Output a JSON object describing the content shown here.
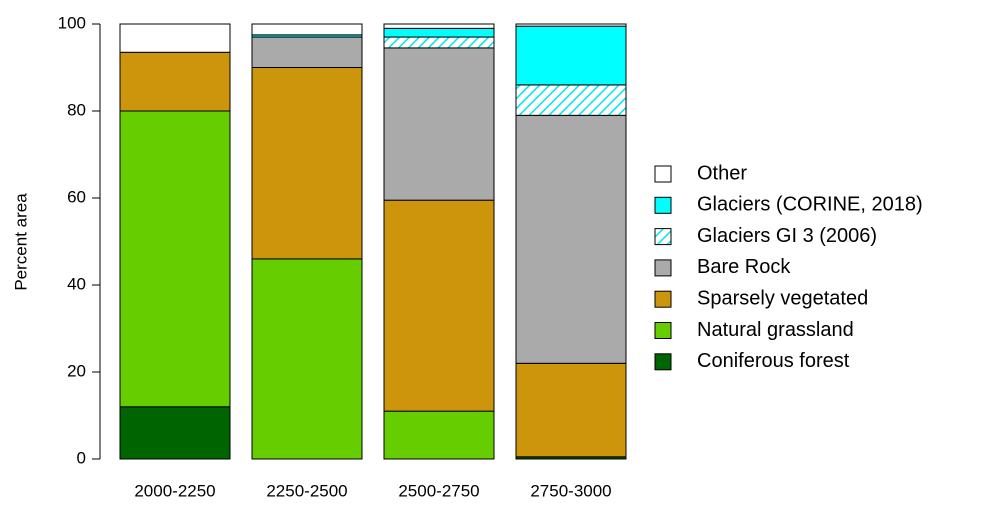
{
  "chart_data": {
    "type": "stacked_bar",
    "categories": [
      "2000-2250",
      "2250-2500",
      "2500-2750",
      "2750-3000"
    ],
    "y_label": "Percent area",
    "ylim": [
      0,
      100
    ],
    "yticks": [
      0,
      20,
      40,
      60,
      80,
      100
    ],
    "series": [
      {
        "name": "Coniferous forest",
        "color": "#006400",
        "values": [
          12,
          0,
          0,
          0.5
        ]
      },
      {
        "name": "Natural grassland",
        "color": "#66cd00",
        "values": [
          68,
          46,
          11,
          0
        ]
      },
      {
        "name": "Sparsely vegetated",
        "color": "#cd950c",
        "values": [
          13.5,
          44,
          48.5,
          21.5
        ]
      },
      {
        "name": "Bare Rock",
        "color": "#aaaaaa",
        "values": [
          0,
          7,
          35,
          57
        ]
      },
      {
        "name": "Glaciers GI 3 (2006)",
        "color": "#00ffff",
        "hatch": true,
        "values": [
          0,
          0,
          2.5,
          7
        ]
      },
      {
        "name": "Glaciers (CORINE, 2018)",
        "color": "#00ffff",
        "values": [
          0,
          0.5,
          2,
          13.5
        ]
      },
      {
        "name": "Other",
        "color": "#ffffff",
        "values": [
          6.5,
          2.5,
          1,
          0.5
        ]
      }
    ]
  }
}
